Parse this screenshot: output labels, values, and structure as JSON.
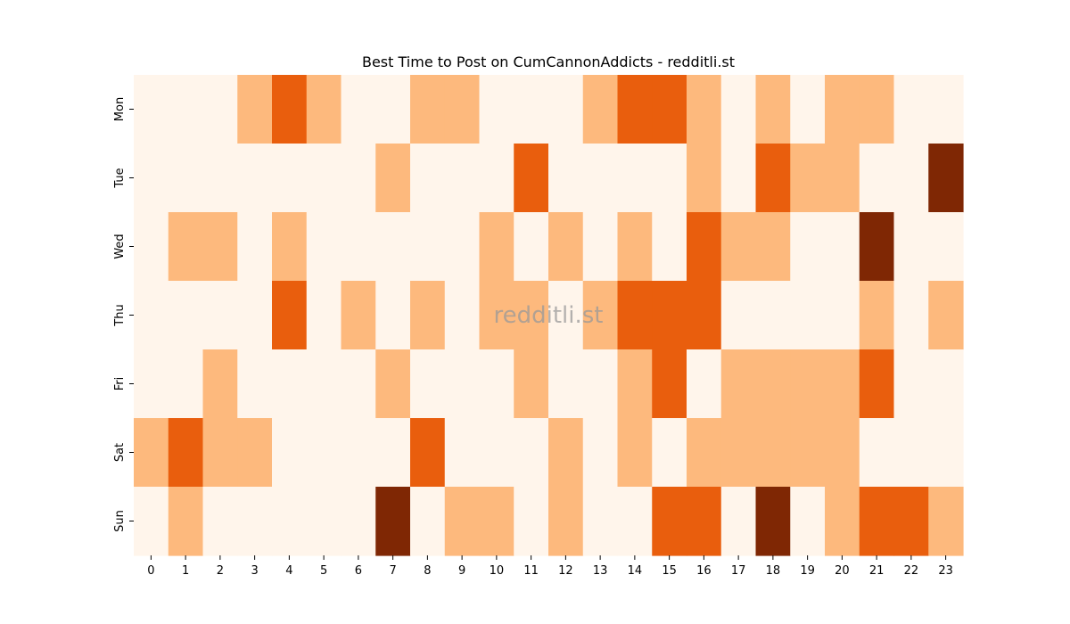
{
  "chart_data": {
    "type": "heatmap",
    "title": "Best Time to Post on CumCannonAddicts - redditli.st",
    "watermark": "redditli.st",
    "x_categories": [
      "0",
      "1",
      "2",
      "3",
      "4",
      "5",
      "6",
      "7",
      "8",
      "9",
      "10",
      "11",
      "12",
      "13",
      "14",
      "15",
      "16",
      "17",
      "18",
      "19",
      "20",
      "21",
      "22",
      "23"
    ],
    "y_categories": [
      "Mon",
      "Tue",
      "Wed",
      "Thu",
      "Fri",
      "Sat",
      "Sun"
    ],
    "values": [
      [
        0,
        0,
        0,
        1,
        2,
        1,
        0,
        0,
        1,
        1,
        0,
        0,
        0,
        1,
        2,
        2,
        1,
        0,
        1,
        0,
        1,
        1,
        0,
        0
      ],
      [
        0,
        0,
        0,
        0,
        0,
        0,
        0,
        1,
        0,
        0,
        0,
        2,
        0,
        0,
        0,
        0,
        1,
        0,
        2,
        1,
        1,
        0,
        0,
        3
      ],
      [
        0,
        1,
        1,
        0,
        1,
        0,
        0,
        0,
        0,
        0,
        1,
        0,
        1,
        0,
        1,
        0,
        2,
        1,
        1,
        0,
        0,
        3,
        0,
        0
      ],
      [
        0,
        0,
        0,
        0,
        2,
        0,
        1,
        0,
        1,
        0,
        1,
        1,
        0,
        1,
        2,
        2,
        2,
        0,
        0,
        0,
        0,
        1,
        0,
        1
      ],
      [
        0,
        0,
        1,
        0,
        0,
        0,
        0,
        1,
        0,
        0,
        0,
        1,
        0,
        0,
        1,
        2,
        0,
        1,
        1,
        1,
        1,
        2,
        0,
        0
      ],
      [
        1,
        2,
        1,
        1,
        0,
        0,
        0,
        0,
        2,
        0,
        0,
        0,
        1,
        0,
        1,
        0,
        1,
        1,
        1,
        1,
        1,
        0,
        0,
        0
      ],
      [
        0,
        1,
        0,
        0,
        0,
        0,
        0,
        3,
        0,
        1,
        1,
        0,
        1,
        0,
        0,
        2,
        2,
        0,
        3,
        0,
        1,
        2,
        2,
        1
      ]
    ],
    "colorscale": {
      "0": "#fff5eb",
      "1": "#fdb97d",
      "2": "#e95e0d",
      "3": "#7f2704"
    },
    "grid": false,
    "legend": "none"
  }
}
